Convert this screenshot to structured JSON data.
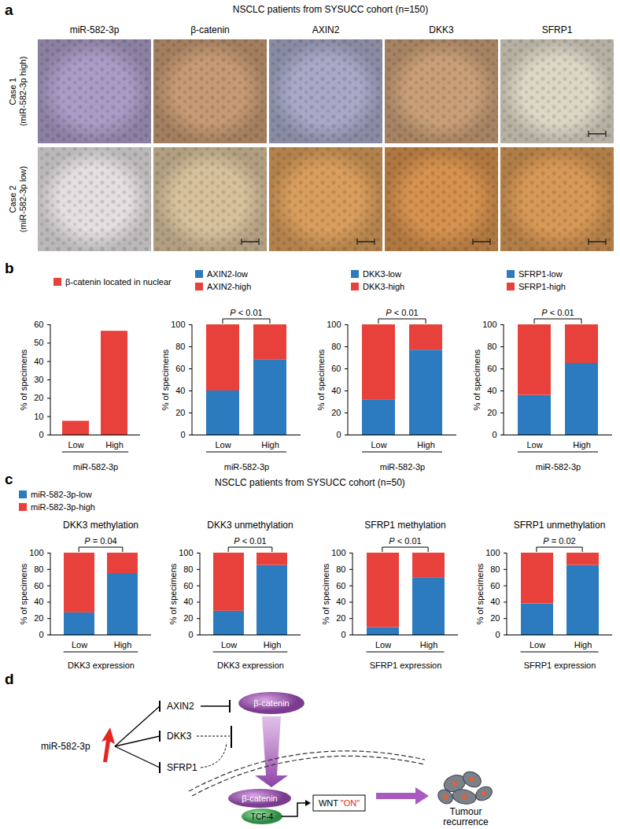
{
  "panel_labels": [
    "a",
    "b",
    "c",
    "d"
  ],
  "panel_a": {
    "header": "NSCLC patients from SYSUCC cohort (n=150)",
    "columns": [
      "miR-582-3p",
      "β-catenin",
      "AXIN2",
      "DKK3",
      "SFRP1"
    ],
    "rows": [
      {
        "label": "Case 1",
        "sublabel": "(miR-582-3p high)"
      },
      {
        "label": "Case 2",
        "sublabel": "(miR-582-3p low)"
      }
    ]
  },
  "panel_c": {
    "header": "NSCLC patients from SYSUCC cohort (n=50)"
  },
  "chart_data": [
    {
      "type": "bar",
      "categories": [
        "Low",
        "High"
      ],
      "xlabel": "miR-582-3p",
      "ylabel": "% of specimens",
      "series": [
        {
          "name": "β-catenin located in nuclear",
          "color": "#e8413c",
          "values": [
            7.5,
            56.5
          ]
        }
      ],
      "ylim": [
        0,
        60
      ],
      "yticks": [
        0,
        10,
        20,
        30,
        40,
        50,
        60
      ],
      "legend": "top"
    },
    {
      "type": "bar",
      "stacked": true,
      "categories": [
        "Low",
        "High"
      ],
      "xlabel": "miR-582-3p",
      "ylabel": "% of specimens",
      "annotation": "P < 0.01",
      "series": [
        {
          "name": "AXIN2-low",
          "color": "#2c7bbf",
          "values": [
            40,
            68
          ]
        },
        {
          "name": "AXIN2-high",
          "color": "#e8413c",
          "values": [
            60,
            32
          ]
        }
      ],
      "ylim": [
        0,
        100
      ],
      "yticks": [
        0,
        20,
        40,
        60,
        80,
        100
      ],
      "legend": "top"
    },
    {
      "type": "bar",
      "stacked": true,
      "categories": [
        "Low",
        "High"
      ],
      "xlabel": "miR-582-3p",
      "ylabel": "% of specimens",
      "annotation": "P < 0.01",
      "series": [
        {
          "name": "DKK3-low",
          "color": "#2c7bbf",
          "values": [
            32,
            77
          ]
        },
        {
          "name": "DKK3-high",
          "color": "#e8413c",
          "values": [
            68,
            23
          ]
        }
      ],
      "ylim": [
        0,
        100
      ],
      "yticks": [
        0,
        20,
        40,
        60,
        80,
        100
      ],
      "legend": "top"
    },
    {
      "type": "bar",
      "stacked": true,
      "categories": [
        "Low",
        "High"
      ],
      "xlabel": "miR-582-3p",
      "ylabel": "% of specimens",
      "annotation": "P < 0.01",
      "series": [
        {
          "name": "SFRP1-low",
          "color": "#2c7bbf",
          "values": [
            36,
            65
          ]
        },
        {
          "name": "SFRP1-high",
          "color": "#e8413c",
          "values": [
            64,
            35
          ]
        }
      ],
      "ylim": [
        0,
        100
      ],
      "yticks": [
        0,
        20,
        40,
        60,
        80,
        100
      ],
      "legend": "top"
    },
    {
      "type": "bar",
      "stacked": true,
      "title": "DKK3 methylation",
      "categories": [
        "Low",
        "High"
      ],
      "xlabel": "DKK3 expression",
      "ylabel": "% of specimens",
      "annotation": "P = 0.04",
      "series": [
        {
          "name": "miR-582-3p-low",
          "color": "#2c7bbf",
          "values": [
            27,
            75
          ]
        },
        {
          "name": "miR-582-3p-high",
          "color": "#e8413c",
          "values": [
            73,
            25
          ]
        }
      ],
      "ylim": [
        0,
        100
      ],
      "yticks": [
        0,
        20,
        40,
        60,
        80,
        100
      ],
      "legend": "top-left"
    },
    {
      "type": "bar",
      "stacked": true,
      "title": "DKK3 unmethylation",
      "categories": [
        "Low",
        "High"
      ],
      "xlabel": "DKK3 expression",
      "ylabel": "% of specimens",
      "annotation": "P < 0.01",
      "series": [
        {
          "name": "miR-582-3p-low",
          "color": "#2c7bbf",
          "values": [
            29,
            85
          ]
        },
        {
          "name": "miR-582-3p-high",
          "color": "#e8413c",
          "values": [
            71,
            15
          ]
        }
      ],
      "ylim": [
        0,
        100
      ],
      "yticks": [
        0,
        20,
        40,
        60,
        80,
        100
      ]
    },
    {
      "type": "bar",
      "stacked": true,
      "title": "SFRP1 methylation",
      "categories": [
        "Low",
        "High"
      ],
      "xlabel": "SFRP1 expression",
      "ylabel": "% of specimens",
      "annotation": "P < 0.01",
      "series": [
        {
          "name": "miR-582-3p-low",
          "color": "#2c7bbf",
          "values": [
            9,
            70
          ]
        },
        {
          "name": "miR-582-3p-high",
          "color": "#e8413c",
          "values": [
            91,
            30
          ]
        }
      ],
      "ylim": [
        0,
        100
      ],
      "yticks": [
        0,
        20,
        40,
        60,
        80,
        100
      ]
    },
    {
      "type": "bar",
      "stacked": true,
      "title": "SFRP1 unmethylation",
      "categories": [
        "Low",
        "High"
      ],
      "xlabel": "SFRP1 expression",
      "ylabel": "% of specimens",
      "annotation": "P = 0.02",
      "series": [
        {
          "name": "miR-582-3p-low",
          "color": "#2c7bbf",
          "values": [
            38,
            85
          ]
        },
        {
          "name": "miR-582-3p-high",
          "color": "#e8413c",
          "values": [
            62,
            15
          ]
        }
      ],
      "ylim": [
        0,
        100
      ],
      "yticks": [
        0,
        20,
        40,
        60,
        80,
        100
      ]
    }
  ],
  "panel_d": {
    "microRNA": "miR-582-3p",
    "targets": [
      "AXIN2",
      "DKK3",
      "SFRP1"
    ],
    "cytoplasmic_protein": "β-catenin",
    "nuclear_protein": "β-catenin",
    "cofactor": "TCF-4",
    "promoter": "WNT",
    "promoter_state": "\"ON\"",
    "outcome_lines": [
      "Tumour",
      "recurrence"
    ]
  }
}
